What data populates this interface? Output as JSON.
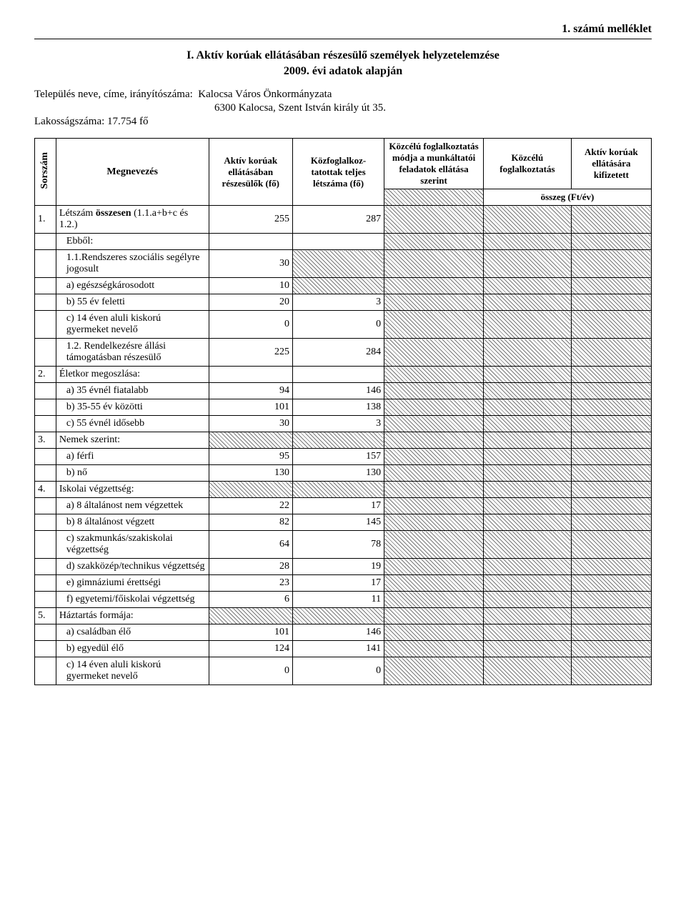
{
  "header": {
    "appendix": "1. számú melléklet",
    "title_line1": "I. Aktív korúak ellátásában részesülő személyek helyzetelemzése",
    "title_line2": "2009. évi adatok alapján",
    "settlement_label": "Település neve, címe, irányítószáma:",
    "settlement_value": "Kalocsa Város Önkormányzata",
    "settlement_address": "6300 Kalocsa, Szent István király út 35.",
    "population_label": "Lakosságszáma: 17.754 fő"
  },
  "columns": {
    "sorszam": "Sorszám",
    "megnevezes": "Megnevezés",
    "c1": "Aktív korúak ellátásában részesülők (fő)",
    "c2": "Közfoglalkoz-tatottak teljes létszáma (fő)",
    "c3": "Közcélú foglalkoztatás módja a munkáltatói feladatok ellátása szerint",
    "c4": "Közcélú foglalkoztatás",
    "c5": "Aktív korúak ellátására kifizetett",
    "osszeg": "összeg (Ft/év)"
  },
  "rows": [
    {
      "idx": "1.",
      "label": "Létszám összesen (1.1.a+b+c és 1.2.)",
      "bold": "label",
      "c1": "255",
      "c2": "287"
    },
    {
      "label": "Ebből:",
      "c1_blank": true
    },
    {
      "label": "1.1.Rendszeres szociális segélyre jogosult",
      "c1": "30",
      "c2_hatch": true
    },
    {
      "label": "a) egészségkárosodott",
      "c1": "10",
      "c2_hatch": true
    },
    {
      "label": "b) 55 év feletti",
      "c1": "20",
      "c2": "3"
    },
    {
      "label": "c) 14 éven aluli kiskorú gyermeket nevelő",
      "c1": "0",
      "c2": "0"
    },
    {
      "label": "1.2. Rendelkezésre állási támogatásban részesülő",
      "c1": "225",
      "c2": "284"
    },
    {
      "idx": "2.",
      "label": "Életkor megoszlása:"
    },
    {
      "label": "a) 35 évnél fiatalabb",
      "c1": "94",
      "c2": "146"
    },
    {
      "label": "b) 35-55 év közötti",
      "c1": "101",
      "c2": "138"
    },
    {
      "label": "c) 55 évnél idősebb",
      "c1": "30",
      "c2": "3"
    },
    {
      "idx": "3.",
      "label": "Nemek szerint:",
      "c1_hatch": true,
      "c2_hatch": true
    },
    {
      "label": "a) férfi",
      "c1": "95",
      "c2": "157"
    },
    {
      "label": "b) nő",
      "c1": "130",
      "c2": "130"
    },
    {
      "idx": "4.",
      "label": "Iskolai végzettség:",
      "c1_hatch": true,
      "c2_hatch": true
    },
    {
      "label": "a) 8 általánost nem végzettek",
      "c1": "22",
      "c2": "17"
    },
    {
      "label": "b) 8 általánost végzett",
      "c1": "82",
      "c2": "145"
    },
    {
      "label": "c) szakmunkás/szakiskolai végzettség",
      "c1": "64",
      "c2": "78"
    },
    {
      "label": "d) szakközép/technikus végzettség",
      "c1": "28",
      "c2": "19"
    },
    {
      "label": "e) gimnáziumi érettségi",
      "c1": "23",
      "c2": "17"
    },
    {
      "label": "f) egyetemi/főiskolai végzettség",
      "c1": "6",
      "c2": "11"
    },
    {
      "idx": "5.",
      "label": "Háztartás formája:",
      "c1_hatch": true,
      "c2_hatch": true
    },
    {
      "label": "a) családban élő",
      "c1": "101",
      "c2": "146"
    },
    {
      "label": "b) egyedül élő",
      "c1": "124",
      "c2": "141"
    },
    {
      "label": "c) 14 éven aluli kiskorú gyermeket nevelő",
      "c1": "0",
      "c2": "0"
    }
  ]
}
